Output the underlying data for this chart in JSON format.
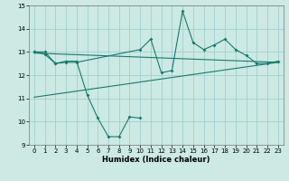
{
  "xlabel": "Humidex (Indice chaleur)",
  "x_values": [
    0,
    1,
    2,
    3,
    4,
    5,
    6,
    7,
    8,
    9,
    10,
    11,
    12,
    13,
    14,
    15,
    16,
    17,
    18,
    19,
    20,
    21,
    22,
    23
  ],
  "line1_y": [
    13.0,
    13.0,
    12.5,
    12.6,
    12.6,
    11.15,
    10.15,
    9.35,
    9.35,
    10.2,
    10.15,
    null,
    null,
    null,
    null,
    null,
    null,
    null,
    null,
    null,
    null,
    null,
    null,
    null
  ],
  "line2_y": [
    13.0,
    12.9,
    12.5,
    12.55,
    12.55,
    null,
    null,
    null,
    null,
    null,
    13.1,
    13.55,
    12.1,
    12.2,
    14.75,
    13.4,
    13.1,
    13.3,
    13.55,
    13.1,
    12.85,
    12.5,
    12.5,
    12.6
  ],
  "line3_x": [
    0,
    23
  ],
  "line3_y": [
    12.95,
    12.55
  ],
  "line4_x": [
    0,
    23
  ],
  "line4_y": [
    11.05,
    12.55
  ],
  "bg_color": "#cce9e4",
  "grid_color": "#99cccc",
  "line_color": "#1a7a6e",
  "ylim": [
    9,
    15
  ],
  "xlim": [
    -0.5,
    23.5
  ],
  "yticks": [
    9,
    10,
    11,
    12,
    13,
    14,
    15
  ],
  "xticks": [
    0,
    1,
    2,
    3,
    4,
    5,
    6,
    7,
    8,
    9,
    10,
    11,
    12,
    13,
    14,
    15,
    16,
    17,
    18,
    19,
    20,
    21,
    22,
    23
  ],
  "xlabel_fontsize": 6.0,
  "tick_fontsize": 5.0
}
